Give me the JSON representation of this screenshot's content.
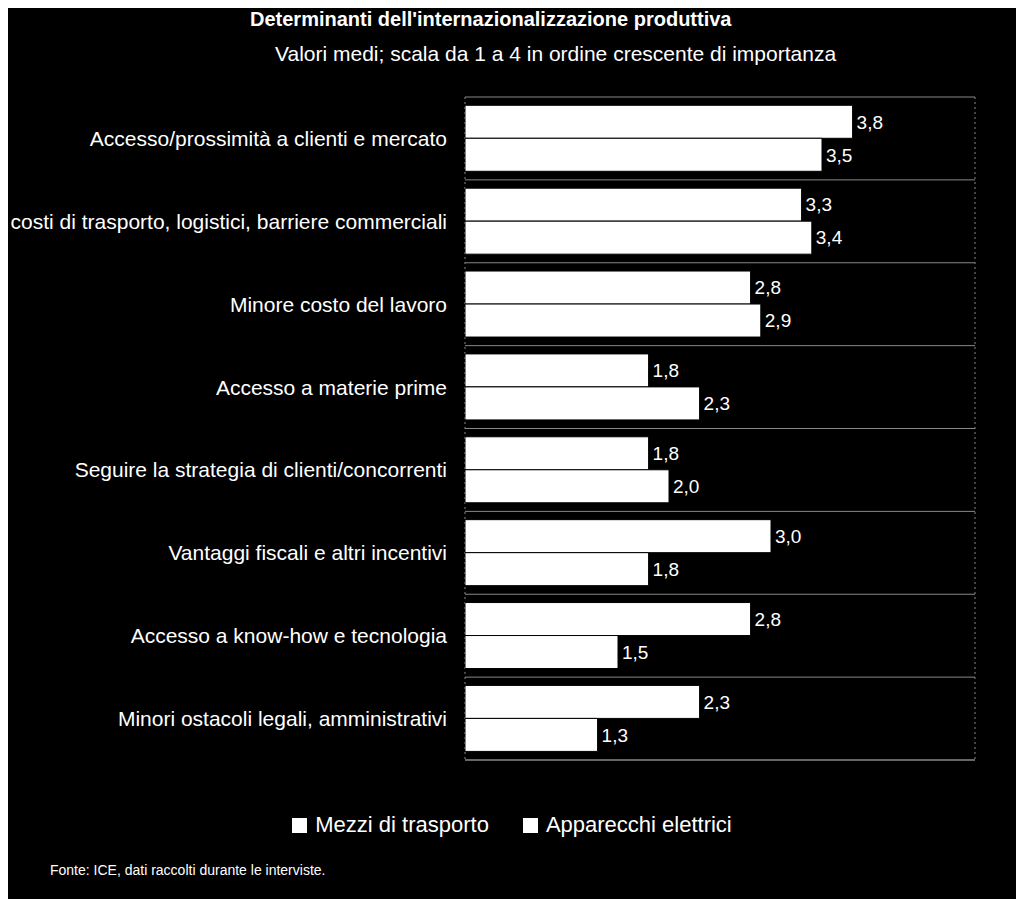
{
  "chart_data": {
    "type": "bar",
    "orientation": "horizontal",
    "title": "Determinanti dell'internazionalizzazione produttiva",
    "subtitle": "Valori medi; scala da 1 a 4 in ordine crescente di importanza",
    "annotations": [
      "Fonte: ICE, dati raccolti durante le interviste."
    ],
    "categories": [
      "Accesso/prossimità a clienti e mercato",
      "Minori costi di trasporto, logistici, barriere commerciali",
      "Minore costo del lavoro",
      "Accesso a materie prime",
      "Seguire la strategia di clienti/concorrenti",
      "Vantaggi fiscali e altri incentivi",
      "Accesso a know-how e tecnologia",
      "Minori ostacoli legali, amministrativi"
    ],
    "series": [
      {
        "name": "Mezzi di trasporto",
        "color": "#ffffff",
        "values": [
          3.8,
          3.3,
          2.8,
          1.8,
          1.8,
          3.0,
          2.8,
          2.3
        ],
        "value_labels": [
          "3,8",
          "3,3",
          "2,8",
          "1,8",
          "1,8",
          "3,0",
          "2,8",
          "2,3"
        ]
      },
      {
        "name": "Apparecchi elettrici",
        "color": "#ffffff",
        "values": [
          3.5,
          3.4,
          2.9,
          2.3,
          2.0,
          1.8,
          1.5,
          1.3
        ],
        "value_labels": [
          "3,5",
          "3,4",
          "2,9",
          "2,3",
          "2,0",
          "1,8",
          "1,5",
          "1,3"
        ]
      }
    ],
    "xlim": [
      0,
      5
    ],
    "xticks": [
      0,
      1,
      2,
      3,
      4,
      5
    ],
    "grid": true,
    "legend": "bottom",
    "data_labels": true,
    "tick_labels": "y"
  }
}
